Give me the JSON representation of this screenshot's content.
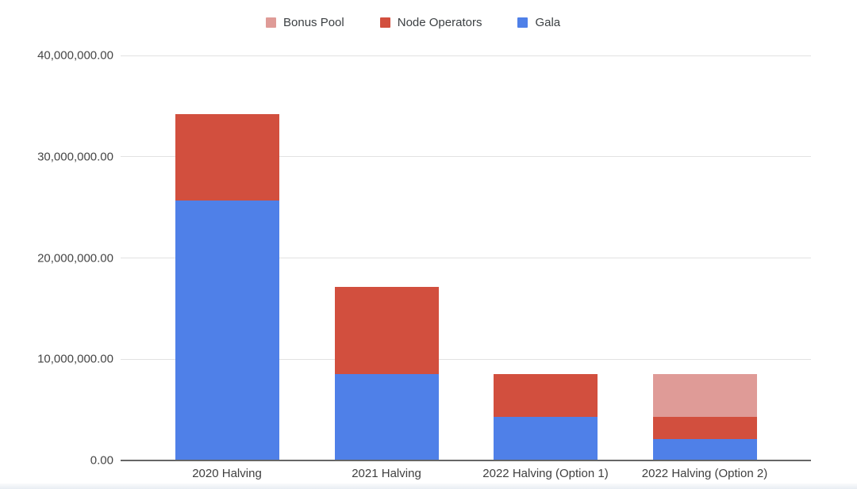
{
  "chart": {
    "legend": [
      {
        "label": "Bonus Pool",
        "color": "#DF9B97"
      },
      {
        "label": "Node Operators",
        "color": "#D24F3E"
      },
      {
        "label": "Gala",
        "color": "#4F80E8"
      }
    ]
  },
  "chart_data": {
    "type": "bar",
    "stacked": true,
    "title": "",
    "xlabel": "",
    "ylabel": "",
    "legend_position": "top",
    "grid": true,
    "categories": [
      "2020 Halving",
      "2021 Halving",
      "2022 Halving (Option 1)",
      "2022 Halving (Option 2)"
    ],
    "series": [
      {
        "name": "Gala",
        "color": "#4F80E8",
        "values": [
          25684931.51,
          8561643.84,
          4280821.92,
          2140410.96
        ]
      },
      {
        "name": "Node Operators",
        "color": "#D24F3E",
        "values": [
          8561643.84,
          8561643.84,
          4280821.92,
          2140410.96
        ]
      },
      {
        "name": "Bonus Pool",
        "color": "#DF9B97",
        "values": [
          0,
          0,
          0,
          4280821.92
        ]
      }
    ],
    "totals": [
      34246575.35,
      17123287.68,
      8561643.84,
      8561643.84
    ],
    "ylim": [
      0,
      40000000
    ],
    "yticks": [
      {
        "value": 0,
        "label": "0.00"
      },
      {
        "value": 10000000,
        "label": "10,000,000.00"
      },
      {
        "value": 20000000,
        "label": "20,000,000.00"
      },
      {
        "value": 30000000,
        "label": "30,000,000.00"
      },
      {
        "value": 40000000,
        "label": "40,000,000.00"
      }
    ]
  }
}
